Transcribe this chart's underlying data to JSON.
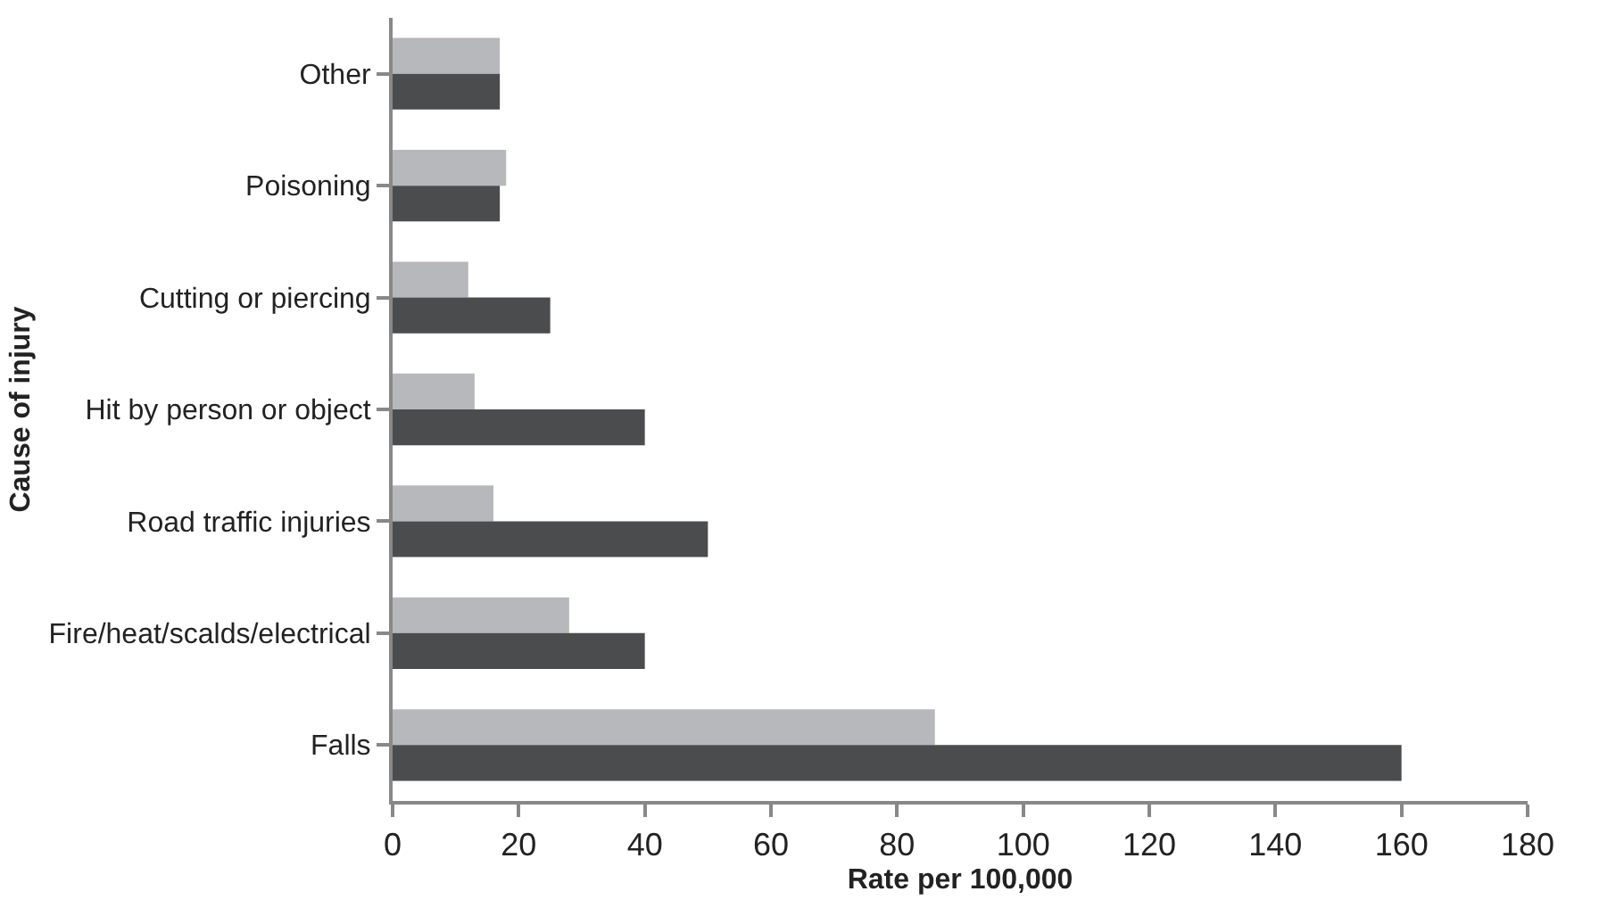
{
  "chart_data": {
    "type": "bar",
    "orientation": "horizontal",
    "xlabel": "Rate per 100,000",
    "ylabel": "Cause of injury",
    "categories": [
      "Other",
      "Poisoning",
      "Cutting or piercing",
      "Hit by person or object",
      "Road traffic injuries",
      "Fire/heat/scalds/electrical",
      "Falls"
    ],
    "series": [
      {
        "color": "#b7b8bb",
        "values": [
          17,
          18,
          12,
          13,
          16,
          28,
          86
        ]
      },
      {
        "color": "#4b4c4e",
        "values": [
          17,
          17,
          25,
          40,
          50,
          40,
          160
        ]
      }
    ],
    "xlim": [
      0,
      180
    ],
    "xticks": [
      0,
      20,
      40,
      60,
      80,
      100,
      120,
      140,
      160,
      180
    ]
  }
}
